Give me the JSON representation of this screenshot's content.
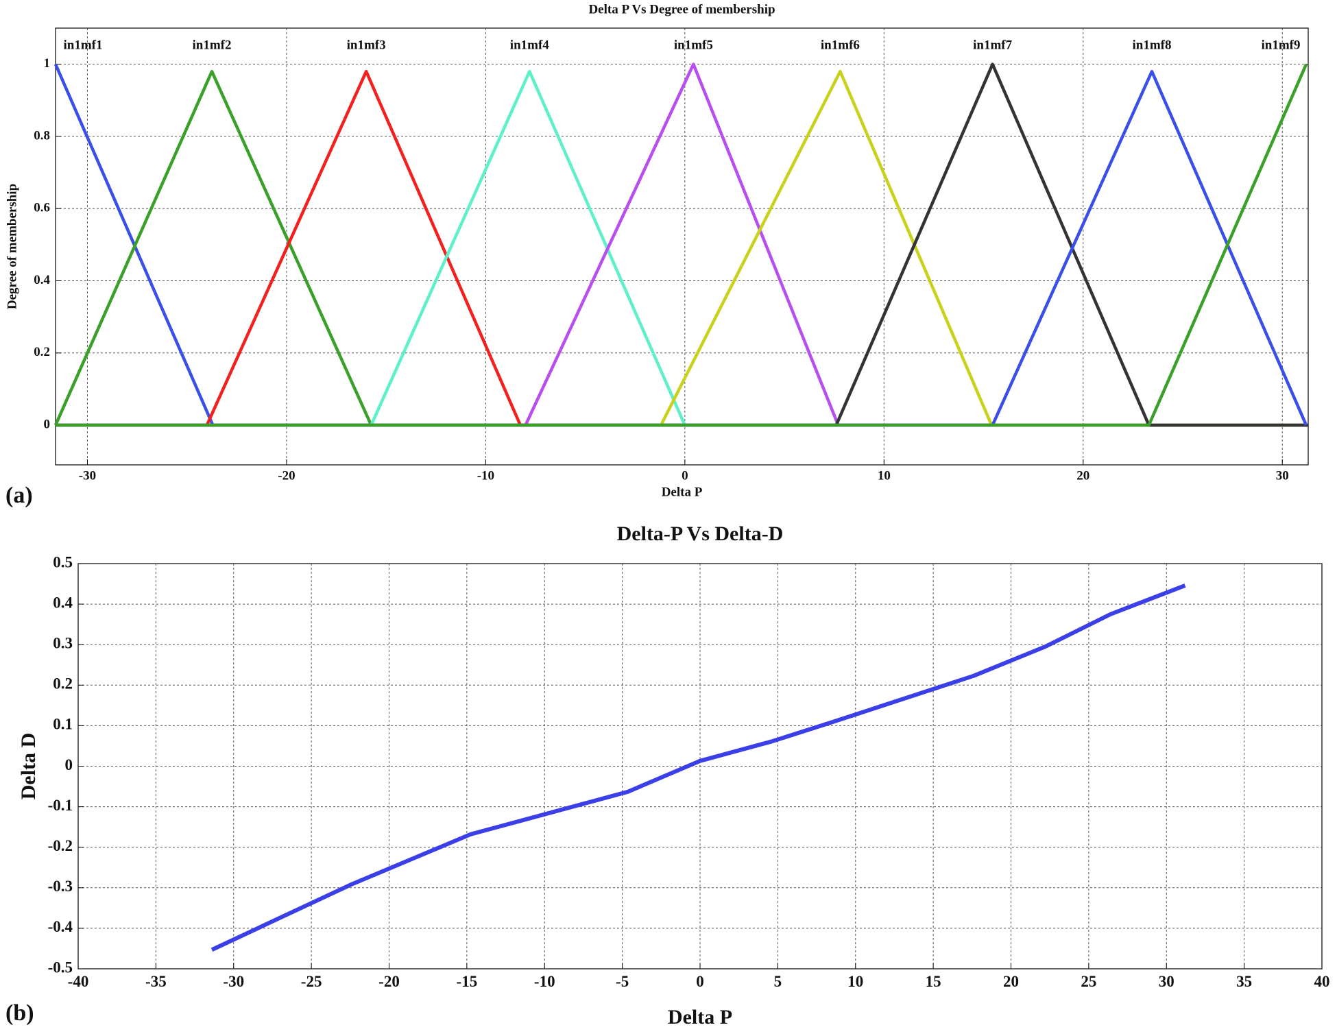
{
  "chart_data": [
    {
      "type": "line",
      "panel_label": "(a)",
      "title": "Delta P Vs Degree of membership",
      "x_label": "Delta P",
      "y_label": "Degree of membership",
      "xlim": [
        -31.6,
        31.3
      ],
      "ylim": [
        -0.11,
        1.1
      ],
      "xticks": [
        -30,
        -20,
        -10,
        0,
        10,
        20,
        30
      ],
      "yticks": [
        0,
        0.2,
        0.4,
        0.6,
        0.8,
        1
      ],
      "grid": true,
      "series": [
        {
          "name": "in1mf1",
          "color": "#3b4fe8",
          "x": [
            -31.6,
            -23.7,
            31.3
          ],
          "values": [
            1,
            0,
            0
          ]
        },
        {
          "name": "in1mf2",
          "color": "#3aa02a",
          "x": [
            -31.6,
            -23.75,
            -15.75,
            31.3
          ],
          "values": [
            0,
            0.98,
            0,
            0
          ]
        },
        {
          "name": "in1mf3",
          "color": "#f2201f",
          "x": [
            -31.6,
            -24.0,
            -16.0,
            -8.26,
            31.3
          ],
          "values": [
            0,
            0,
            0.98,
            0,
            0
          ]
        },
        {
          "name": "in1mf4",
          "color": "#5ef0c8",
          "x": [
            -31.6,
            -15.75,
            -7.8,
            0,
            31.3
          ],
          "values": [
            0,
            0,
            0.98,
            0,
            0
          ]
        },
        {
          "name": "in1mf5",
          "color": "#b84ef0",
          "x": [
            -31.6,
            -8.0,
            0.43,
            7.7,
            31.3
          ],
          "values": [
            0,
            0,
            1,
            0,
            0
          ]
        },
        {
          "name": "in1mf6",
          "color": "#c8d21c",
          "x": [
            -31.6,
            -1.2,
            7.8,
            15.4,
            31.3
          ],
          "values": [
            0,
            0,
            0.98,
            0,
            0
          ]
        },
        {
          "name": "in1mf7",
          "color": "#333333",
          "x": [
            -31.6,
            7.6,
            15.45,
            23.3,
            31.3
          ],
          "values": [
            0,
            0,
            1,
            0,
            0
          ]
        },
        {
          "name": "in1mf8",
          "color": "#3b4fe8",
          "x": [
            -31.6,
            15.45,
            23.45,
            31.2
          ],
          "values": [
            0,
            0,
            0.98,
            0
          ]
        },
        {
          "name": "in1mf9",
          "color": "#3aa02a",
          "x": [
            -31.6,
            23.3,
            31.2
          ],
          "values": [
            0,
            0,
            1
          ]
        }
      ]
    },
    {
      "type": "line",
      "panel_label": "(b)",
      "title": "Delta-P Vs Delta-D",
      "x_label": "Delta P",
      "y_label": "Delta D",
      "xlim": [
        -40,
        40
      ],
      "ylim": [
        -0.5,
        0.5
      ],
      "xticks": [
        -40,
        -35,
        -30,
        -25,
        -20,
        -15,
        -10,
        -5,
        0,
        5,
        10,
        15,
        20,
        25,
        30,
        35,
        40
      ],
      "yticks": [
        -0.5,
        -0.4,
        -0.3,
        -0.2,
        -0.1,
        0,
        0.1,
        0.2,
        0.3,
        0.4,
        0.5
      ],
      "grid": true,
      "color": "#3b3fe8",
      "x": [
        -31.4,
        -22.5,
        -14.75,
        -4.64,
        0,
        4.6,
        8.6,
        17.6,
        22.2,
        26.4,
        31.2
      ],
      "values": [
        -0.453,
        -0.293,
        -0.168,
        -0.063,
        0.013,
        0.061,
        0.11,
        0.223,
        0.295,
        0.375,
        0.446
      ]
    }
  ]
}
